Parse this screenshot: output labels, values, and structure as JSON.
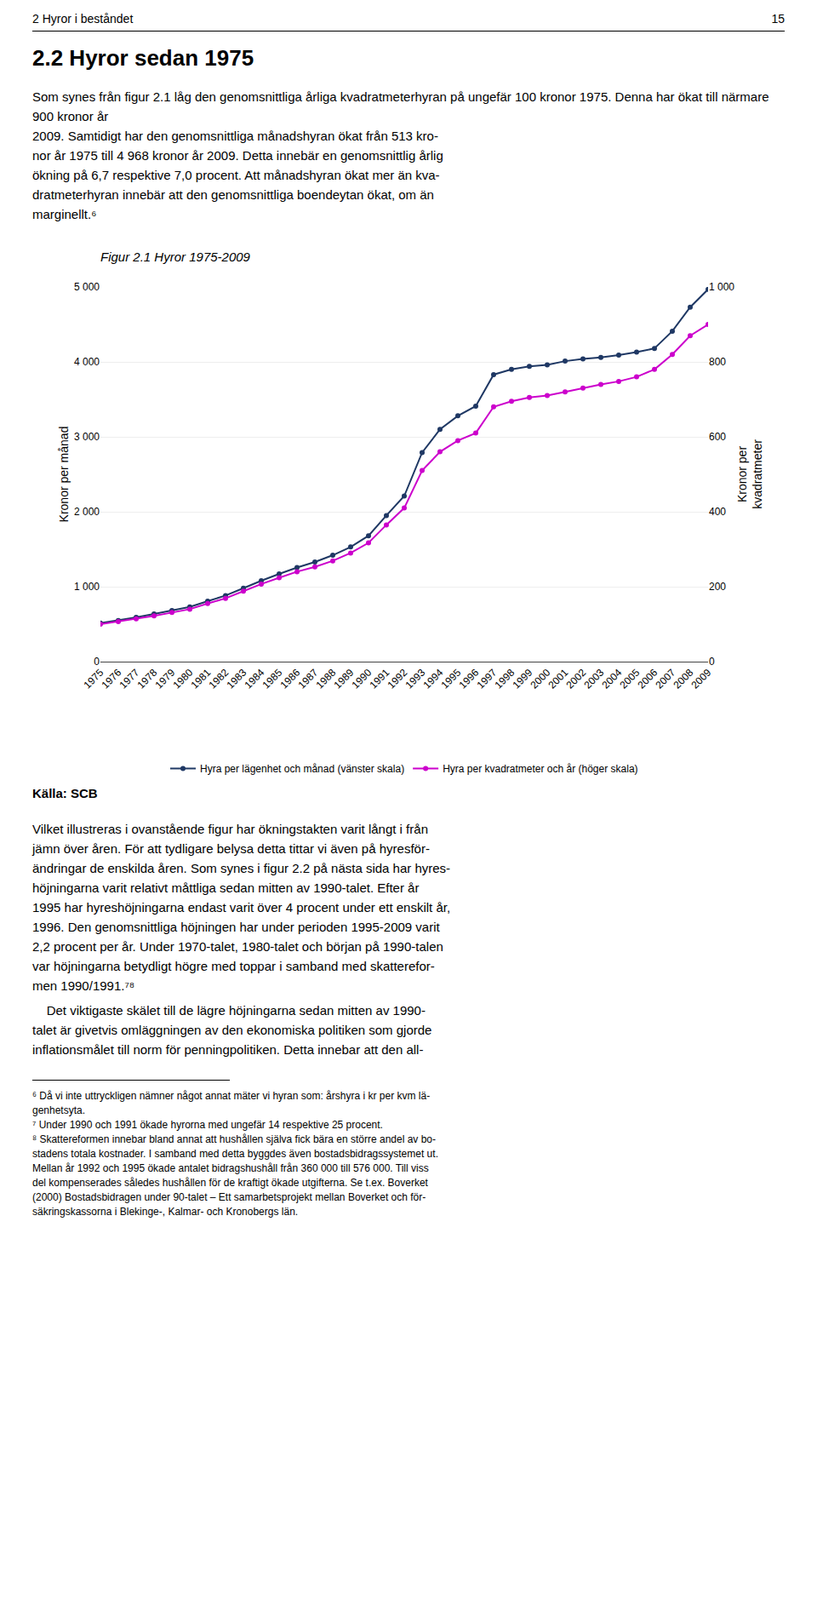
{
  "chart_data": {
    "type": "line",
    "title": "Figur 2.1 Hyror 1975-2009",
    "ylabel": "Kronor per månad",
    "y2label": [
      "Kronor per",
      "kvadratmeter"
    ],
    "x": [
      1975,
      1976,
      1977,
      1978,
      1979,
      1980,
      1981,
      1982,
      1983,
      1984,
      1985,
      1986,
      1987,
      1988,
      1989,
      1990,
      1991,
      1992,
      1993,
      1994,
      1995,
      1996,
      1997,
      1998,
      1999,
      2000,
      2001,
      2002,
      2003,
      2004,
      2005,
      2006,
      2007,
      2008,
      2009
    ],
    "series": [
      {
        "name": "Hyra per lägenhet och månad (vänster skala)",
        "color": "#1F3864",
        "marker": "circle",
        "line_style": "solid",
        "values": [
          513,
          549,
          591,
          636,
          681,
          731,
          807,
          882,
          980,
          1080,
          1170,
          1255,
          1330,
          1420,
          1530,
          1680,
          1950,
          2210,
          2790,
          3100,
          3280,
          3410,
          3830,
          3900,
          3940,
          3960,
          4010,
          4040,
          4060,
          4090,
          4130,
          4180,
          4410,
          4730,
          4968
        ]
      },
      {
        "name": "Hyra per kvadratmeter och år (höger skala)",
        "color": "#CC00CC",
        "marker": "circle",
        "line_style": "solid",
        "axis": "y2",
        "values": [
          100,
          107,
          114,
          122,
          131,
          140,
          155,
          169,
          188,
          207,
          224,
          240,
          253,
          269,
          290,
          317,
          365,
          410,
          510,
          560,
          590,
          610,
          680,
          695,
          705,
          710,
          720,
          730,
          740,
          748,
          760,
          780,
          820,
          870,
          900
        ]
      }
    ],
    "xlim": [
      1975,
      2009
    ],
    "xticks": [
      1975,
      1976,
      1977,
      1978,
      1979,
      1980,
      1981,
      1982,
      1983,
      1984,
      1985,
      1986,
      1987,
      1988,
      1989,
      1990,
      1991,
      1992,
      1993,
      1994,
      1995,
      1996,
      1997,
      1998,
      1999,
      2000,
      2001,
      2002,
      2003,
      2004,
      2005,
      2006,
      2007,
      2008,
      2009
    ],
    "ylim": [
      0,
      5000
    ],
    "yticks": [
      0,
      {
        "value": 1000,
        "label": "1 000"
      },
      {
        "value": 2000,
        "label": "2 000"
      },
      {
        "value": 3000,
        "label": "3 000"
      },
      {
        "value": 4000,
        "label": "4 000"
      },
      {
        "value": 5000,
        "label": "5 000"
      }
    ],
    "y2lim": [
      0,
      1000
    ],
    "y2ticks": [
      0,
      200,
      400,
      600,
      800,
      {
        "value": 1000,
        "label": "1 000"
      }
    ],
    "grid": true,
    "legend": "bottom"
  },
  "page": {
    "header": "2 Hyror i beståndet",
    "page_number": "15",
    "section_title": "2.2 Hyror sedan 1975",
    "text_before": [
      "Som synes från figur 2.1 låg den genomsnittliga årliga kvadratmeterhyran på ungefär 100 kronor 1975. Denna har ökat till närmare 900 kronor år",
      "2009. Samtidigt har den genomsnittliga månadshyran ökat från 513 kro-",
      "nor år 1975 till 4 968 kronor år 2009. Detta innebär en genomsnittlig årlig",
      "ökning på 6,7 respektive 7,0 procent. Att månadshyran ökat mer än kva-",
      "dratmeterhyran innebär att den genomsnittliga boendeytan ökat, om än",
      "marginellt.⁶"
    ],
    "source": "Källa: SCB",
    "text_after": [
      "Vilket illustreras i ovanstående figur har ökningstakten varit långt i från",
      "jämn över åren. För att tydligare belysa detta tittar vi även på hyresför-",
      "ändringar de enskilda åren. Som synes i figur 2.2 på nästa sida har hyres-",
      "höjningarna varit relativt måttliga sedan mitten av 1990-talet. Efter år",
      "1995 har hyreshöjningarna endast varit över 4 procent under ett enskilt år,",
      "1996. Den genomsnittliga höjningen har under perioden 1995-2009 varit",
      "2,2 procent per år. Under 1970-talet, 1980-talet och början på 1990-talen",
      "var höjningarna betydligt högre med toppar i samband med skatterefor-",
      "men 1990/1991.⁷⁸"
    ],
    "text_after_2": [
      "    Det viktigaste skälet till de lägre höjningarna sedan mitten av 1990-",
      "talet är givetvis omläggningen av den ekonomiska politiken som gjorde",
      "inflationsmålet till norm för penningpolitiken. Detta innebar att den all-"
    ],
    "footnotes": [
      "⁶ Då vi inte uttryckligen nämner något annat mäter vi hyran som: årshyra i kr per kvm lä-",
      "genhetsyta.",
      "⁷ Under 1990 och 1991 ökade hyrorna med ungefär 14 respektive 25 procent.",
      "⁸ Skattereformen innebar bland annat att hushållen själva fick bära en större andel av bo-",
      "stadens totala kostnader. I samband med detta byggdes även bostadsbidragssystemet ut.",
      "Mellan år 1992 och 1995 ökade antalet bidragshushåll från 360 000 till 576 000. Till viss",
      "del kompenserades således hushållen för de kraftigt ökade utgifterna. Se t.ex. Boverket",
      "(2000) Bostadsbidragen under 90-talet – Ett samarbetsprojekt mellan Boverket och för-",
      "säkringskassorna i Blekinge-, Kalmar- och Kronobergs län."
    ]
  }
}
